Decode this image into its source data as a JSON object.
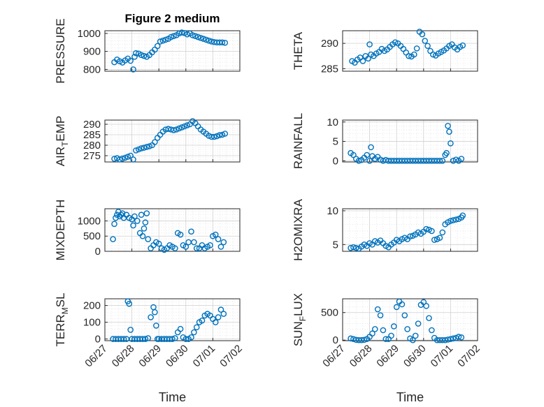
{
  "figure": {
    "title": "Figure 2 medium",
    "marker_color": "#0072bd"
  },
  "chart_data": [
    {
      "type": "scatter",
      "title": "Figure 2 medium",
      "ylabel": "PRESSURE",
      "xlabel": "",
      "xlim": [
        0,
        5
      ],
      "ylim": [
        790,
        1015
      ],
      "yticks": [
        800,
        900,
        1000
      ],
      "x": [
        0.35,
        0.45,
        0.55,
        0.65,
        0.75,
        0.85,
        0.95,
        1.05,
        1.1,
        1.15,
        1.25,
        1.35,
        1.45,
        1.55,
        1.65,
        1.75,
        1.85,
        1.95,
        2.05,
        2.15,
        2.25,
        2.35,
        2.45,
        2.55,
        2.65,
        2.75,
        2.85,
        2.95,
        3.05,
        3.15,
        3.25,
        3.35,
        3.45,
        3.55,
        3.65,
        3.75,
        3.85,
        3.95,
        4.05,
        4.15,
        4.25,
        4.35,
        4.45
      ],
      "y": [
        840,
        855,
        845,
        838,
        850,
        860,
        848,
        800,
        870,
        890,
        888,
        880,
        875,
        870,
        880,
        895,
        910,
        930,
        955,
        960,
        965,
        970,
        980,
        985,
        990,
        1000,
        1005,
        1002,
        995,
        1000,
        990,
        985,
        980,
        975,
        970,
        965,
        960,
        955,
        952,
        950,
        950,
        950,
        948
      ]
    },
    {
      "type": "scatter",
      "ylabel": "THETA",
      "xlabel": "",
      "xlim": [
        0,
        5
      ],
      "ylim": [
        284.5,
        292.5
      ],
      "yticks": [
        285,
        290
      ],
      "x": [
        0.35,
        0.45,
        0.55,
        0.65,
        0.75,
        0.85,
        0.95,
        1.0,
        1.05,
        1.15,
        1.25,
        1.35,
        1.45,
        1.55,
        1.65,
        1.75,
        1.85,
        1.95,
        2.05,
        2.15,
        2.25,
        2.35,
        2.45,
        2.55,
        2.65,
        2.75,
        2.85,
        2.95,
        3.05,
        3.15,
        3.25,
        3.35,
        3.45,
        3.55,
        3.65,
        3.75,
        3.85,
        3.95,
        4.05,
        4.15,
        4.25,
        4.35,
        4.45
      ],
      "y": [
        286.5,
        286.2,
        286.8,
        287.2,
        286.5,
        287.5,
        287.0,
        289.8,
        287.8,
        287.5,
        288.0,
        288.3,
        288.9,
        288.5,
        288.8,
        289.3,
        289.8,
        290.2,
        290.0,
        289.5,
        288.9,
        288.2,
        287.5,
        287.4,
        287.8,
        289.0,
        292.3,
        291.8,
        290.5,
        289.5,
        288.5,
        287.8,
        287.6,
        288.0,
        288.3,
        288.6,
        289.0,
        289.5,
        289.8,
        289.2,
        288.8,
        289.3,
        289.6
      ]
    },
    {
      "type": "scatter",
      "ylabel": "AIR_TEMP",
      "xlabel": "",
      "xlim": [
        0,
        5
      ],
      "ylim": [
        272,
        292
      ],
      "yticks": [
        275,
        280,
        285,
        290
      ],
      "x": [
        0.35,
        0.45,
        0.55,
        0.65,
        0.75,
        0.85,
        0.95,
        1.05,
        1.15,
        1.25,
        1.35,
        1.45,
        1.55,
        1.65,
        1.75,
        1.85,
        1.95,
        2.05,
        2.15,
        2.25,
        2.35,
        2.45,
        2.55,
        2.65,
        2.75,
        2.85,
        2.95,
        3.05,
        3.15,
        3.25,
        3.35,
        3.45,
        3.55,
        3.65,
        3.75,
        3.85,
        3.95,
        4.05,
        4.15,
        4.25,
        4.35,
        4.45
      ],
      "y": [
        273.5,
        273.8,
        273.2,
        273.6,
        274.0,
        274.5,
        275.0,
        273.2,
        277.5,
        278.0,
        278.5,
        278.8,
        279.2,
        279.5,
        280.0,
        281.5,
        283.5,
        285.0,
        286.5,
        287.5,
        287.8,
        287.5,
        287.2,
        287.5,
        288.0,
        288.5,
        289.0,
        289.5,
        290.0,
        291.5,
        290.5,
        289.0,
        287.5,
        286.5,
        285.5,
        284.5,
        284.0,
        284.0,
        284.3,
        284.8,
        285.0,
        285.5
      ]
    },
    {
      "type": "scatter",
      "ylabel": "RAINFALL",
      "xlabel": "",
      "xlim": [
        0,
        5
      ],
      "ylim": [
        -0.3,
        10.5
      ],
      "yticks": [
        0,
        5,
        10
      ],
      "x": [
        0.3,
        0.4,
        0.5,
        0.6,
        0.7,
        0.8,
        0.9,
        1.0,
        1.05,
        1.1,
        1.2,
        1.3,
        1.4,
        1.5,
        1.6,
        1.7,
        1.8,
        1.9,
        2.0,
        2.1,
        2.2,
        2.3,
        2.4,
        2.5,
        2.6,
        2.7,
        2.8,
        2.9,
        3.0,
        3.1,
        3.2,
        3.3,
        3.4,
        3.5,
        3.6,
        3.7,
        3.8,
        3.85,
        3.9,
        3.95,
        4.0,
        4.1,
        4.2,
        4.3,
        4.4
      ],
      "y": [
        2.0,
        1.5,
        0.5,
        0.0,
        0.2,
        0.8,
        1.5,
        0.0,
        3.5,
        1.2,
        0.5,
        1.0,
        0.3,
        0.0,
        0.2,
        0.0,
        0.0,
        0.0,
        0.0,
        0.0,
        0.0,
        0.0,
        0.0,
        0.0,
        0.0,
        0.0,
        0.0,
        0.0,
        0.0,
        0.0,
        0.0,
        0.0,
        0.0,
        0.0,
        0.0,
        0.0,
        1.5,
        2.0,
        9.0,
        7.5,
        4.5,
        0.0,
        0.3,
        0.0,
        0.5
      ]
    },
    {
      "type": "scatter",
      "ylabel": "MIXDEPTH",
      "xlabel": "",
      "xlim": [
        0,
        5
      ],
      "ylim": [
        0,
        1400
      ],
      "yticks": [
        0,
        500,
        1000
      ],
      "x": [
        0.3,
        0.35,
        0.4,
        0.45,
        0.5,
        0.55,
        0.6,
        0.65,
        0.7,
        0.8,
        0.9,
        1.0,
        1.05,
        1.1,
        1.2,
        1.3,
        1.35,
        1.4,
        1.45,
        1.5,
        1.55,
        1.6,
        1.7,
        1.8,
        1.9,
        2.0,
        2.1,
        2.2,
        2.3,
        2.4,
        2.5,
        2.6,
        2.7,
        2.8,
        2.9,
        3.0,
        3.1,
        3.2,
        3.3,
        3.4,
        3.5,
        3.6,
        3.7,
        3.8,
        3.9,
        4.0,
        4.1,
        4.2,
        4.3,
        4.4
      ],
      "y": [
        400,
        900,
        1100,
        1200,
        1300,
        1150,
        1200,
        1250,
        1100,
        1200,
        1100,
        1050,
        850,
        1150,
        1000,
        600,
        1200,
        500,
        750,
        950,
        1250,
        400,
        100,
        200,
        300,
        250,
        100,
        50,
        100,
        200,
        150,
        100,
        600,
        550,
        200,
        150,
        300,
        650,
        300,
        100,
        100,
        200,
        100,
        150,
        200,
        500,
        550,
        400,
        150,
        300
      ]
    },
    {
      "type": "scatter",
      "ylabel": "H2OMIXRA",
      "xlabel": "",
      "xlim": [
        0,
        5
      ],
      "ylim": [
        4,
        10.3
      ],
      "yticks": [
        5,
        10
      ],
      "x": [
        0.3,
        0.4,
        0.5,
        0.6,
        0.7,
        0.8,
        0.9,
        1.0,
        1.1,
        1.2,
        1.3,
        1.4,
        1.5,
        1.6,
        1.7,
        1.8,
        1.9,
        2.0,
        2.1,
        2.2,
        2.3,
        2.4,
        2.5,
        2.6,
        2.7,
        2.8,
        2.9,
        3.0,
        3.1,
        3.2,
        3.3,
        3.4,
        3.5,
        3.6,
        3.7,
        3.8,
        3.9,
        4.0,
        4.1,
        4.2,
        4.3,
        4.4,
        4.45
      ],
      "y": [
        4.5,
        4.6,
        4.5,
        4.4,
        4.7,
        5.0,
        4.8,
        5.2,
        5.0,
        5.5,
        5.3,
        5.6,
        5.2,
        4.8,
        4.6,
        5.0,
        5.3,
        5.7,
        5.5,
        5.8,
        6.0,
        5.8,
        6.2,
        6.3,
        6.5,
        6.8,
        6.6,
        6.9,
        7.3,
        7.2,
        7.0,
        5.7,
        5.8,
        6.0,
        6.8,
        8.0,
        8.3,
        8.5,
        8.6,
        8.7,
        8.8,
        9.0,
        9.3
      ]
    },
    {
      "type": "scatter",
      "ylabel": "TERR_MSL",
      "xlabel": "Time",
      "xlim": [
        0,
        5
      ],
      "ylim": [
        -10,
        240
      ],
      "yticks": [
        0,
        100,
        200
      ],
      "xticks": [
        0,
        1,
        2,
        3,
        4,
        5
      ],
      "xticklabels": [
        "06/27",
        "06/28",
        "06/29",
        "06/30",
        "07/01",
        "07/02"
      ],
      "x": [
        0.3,
        0.4,
        0.5,
        0.6,
        0.7,
        0.8,
        0.85,
        0.9,
        0.95,
        1.0,
        1.1,
        1.2,
        1.3,
        1.4,
        1.5,
        1.6,
        1.7,
        1.8,
        1.85,
        1.9,
        1.95,
        2.0,
        2.1,
        2.2,
        2.3,
        2.4,
        2.5,
        2.6,
        2.7,
        2.8,
        2.9,
        3.0,
        3.1,
        3.2,
        3.3,
        3.4,
        3.5,
        3.6,
        3.7,
        3.8,
        3.9,
        4.0,
        4.1,
        4.2,
        4.3,
        4.4
      ],
      "y": [
        0,
        0,
        0,
        0,
        0,
        0,
        225,
        210,
        55,
        0,
        0,
        0,
        0,
        0,
        0,
        5,
        130,
        190,
        160,
        80,
        0,
        0,
        0,
        0,
        0,
        0,
        0,
        5,
        40,
        60,
        10,
        0,
        0,
        10,
        40,
        70,
        100,
        110,
        140,
        150,
        140,
        120,
        100,
        130,
        175,
        150
      ]
    },
    {
      "type": "scatter",
      "ylabel": "SUN_FLUX",
      "xlabel": "Time",
      "xlim": [
        0,
        5
      ],
      "ylim": [
        -10,
        750
      ],
      "yticks": [
        0,
        500
      ],
      "xticks": [
        0,
        1,
        2,
        3,
        4,
        5
      ],
      "xticklabels": [
        "06/27",
        "06/28",
        "06/29",
        "06/30",
        "07/01",
        "07/02"
      ],
      "x": [
        0.3,
        0.4,
        0.5,
        0.6,
        0.7,
        0.8,
        0.9,
        1.0,
        1.1,
        1.2,
        1.3,
        1.4,
        1.5,
        1.6,
        1.7,
        1.8,
        1.9,
        2.0,
        2.1,
        2.2,
        2.3,
        2.4,
        2.5,
        2.6,
        2.7,
        2.8,
        2.9,
        3.0,
        3.1,
        3.2,
        3.3,
        3.4,
        3.5,
        3.6,
        3.7,
        3.8,
        3.9,
        4.0,
        4.1,
        4.2,
        4.3,
        4.4
      ],
      "y": [
        30,
        20,
        5,
        0,
        0,
        5,
        20,
        60,
        120,
        200,
        560,
        450,
        180,
        20,
        20,
        80,
        250,
        600,
        700,
        650,
        450,
        200,
        30,
        0,
        80,
        300,
        640,
        690,
        620,
        400,
        180,
        40,
        0,
        0,
        0,
        0,
        10,
        20,
        30,
        40,
        60,
        50
      ]
    }
  ]
}
